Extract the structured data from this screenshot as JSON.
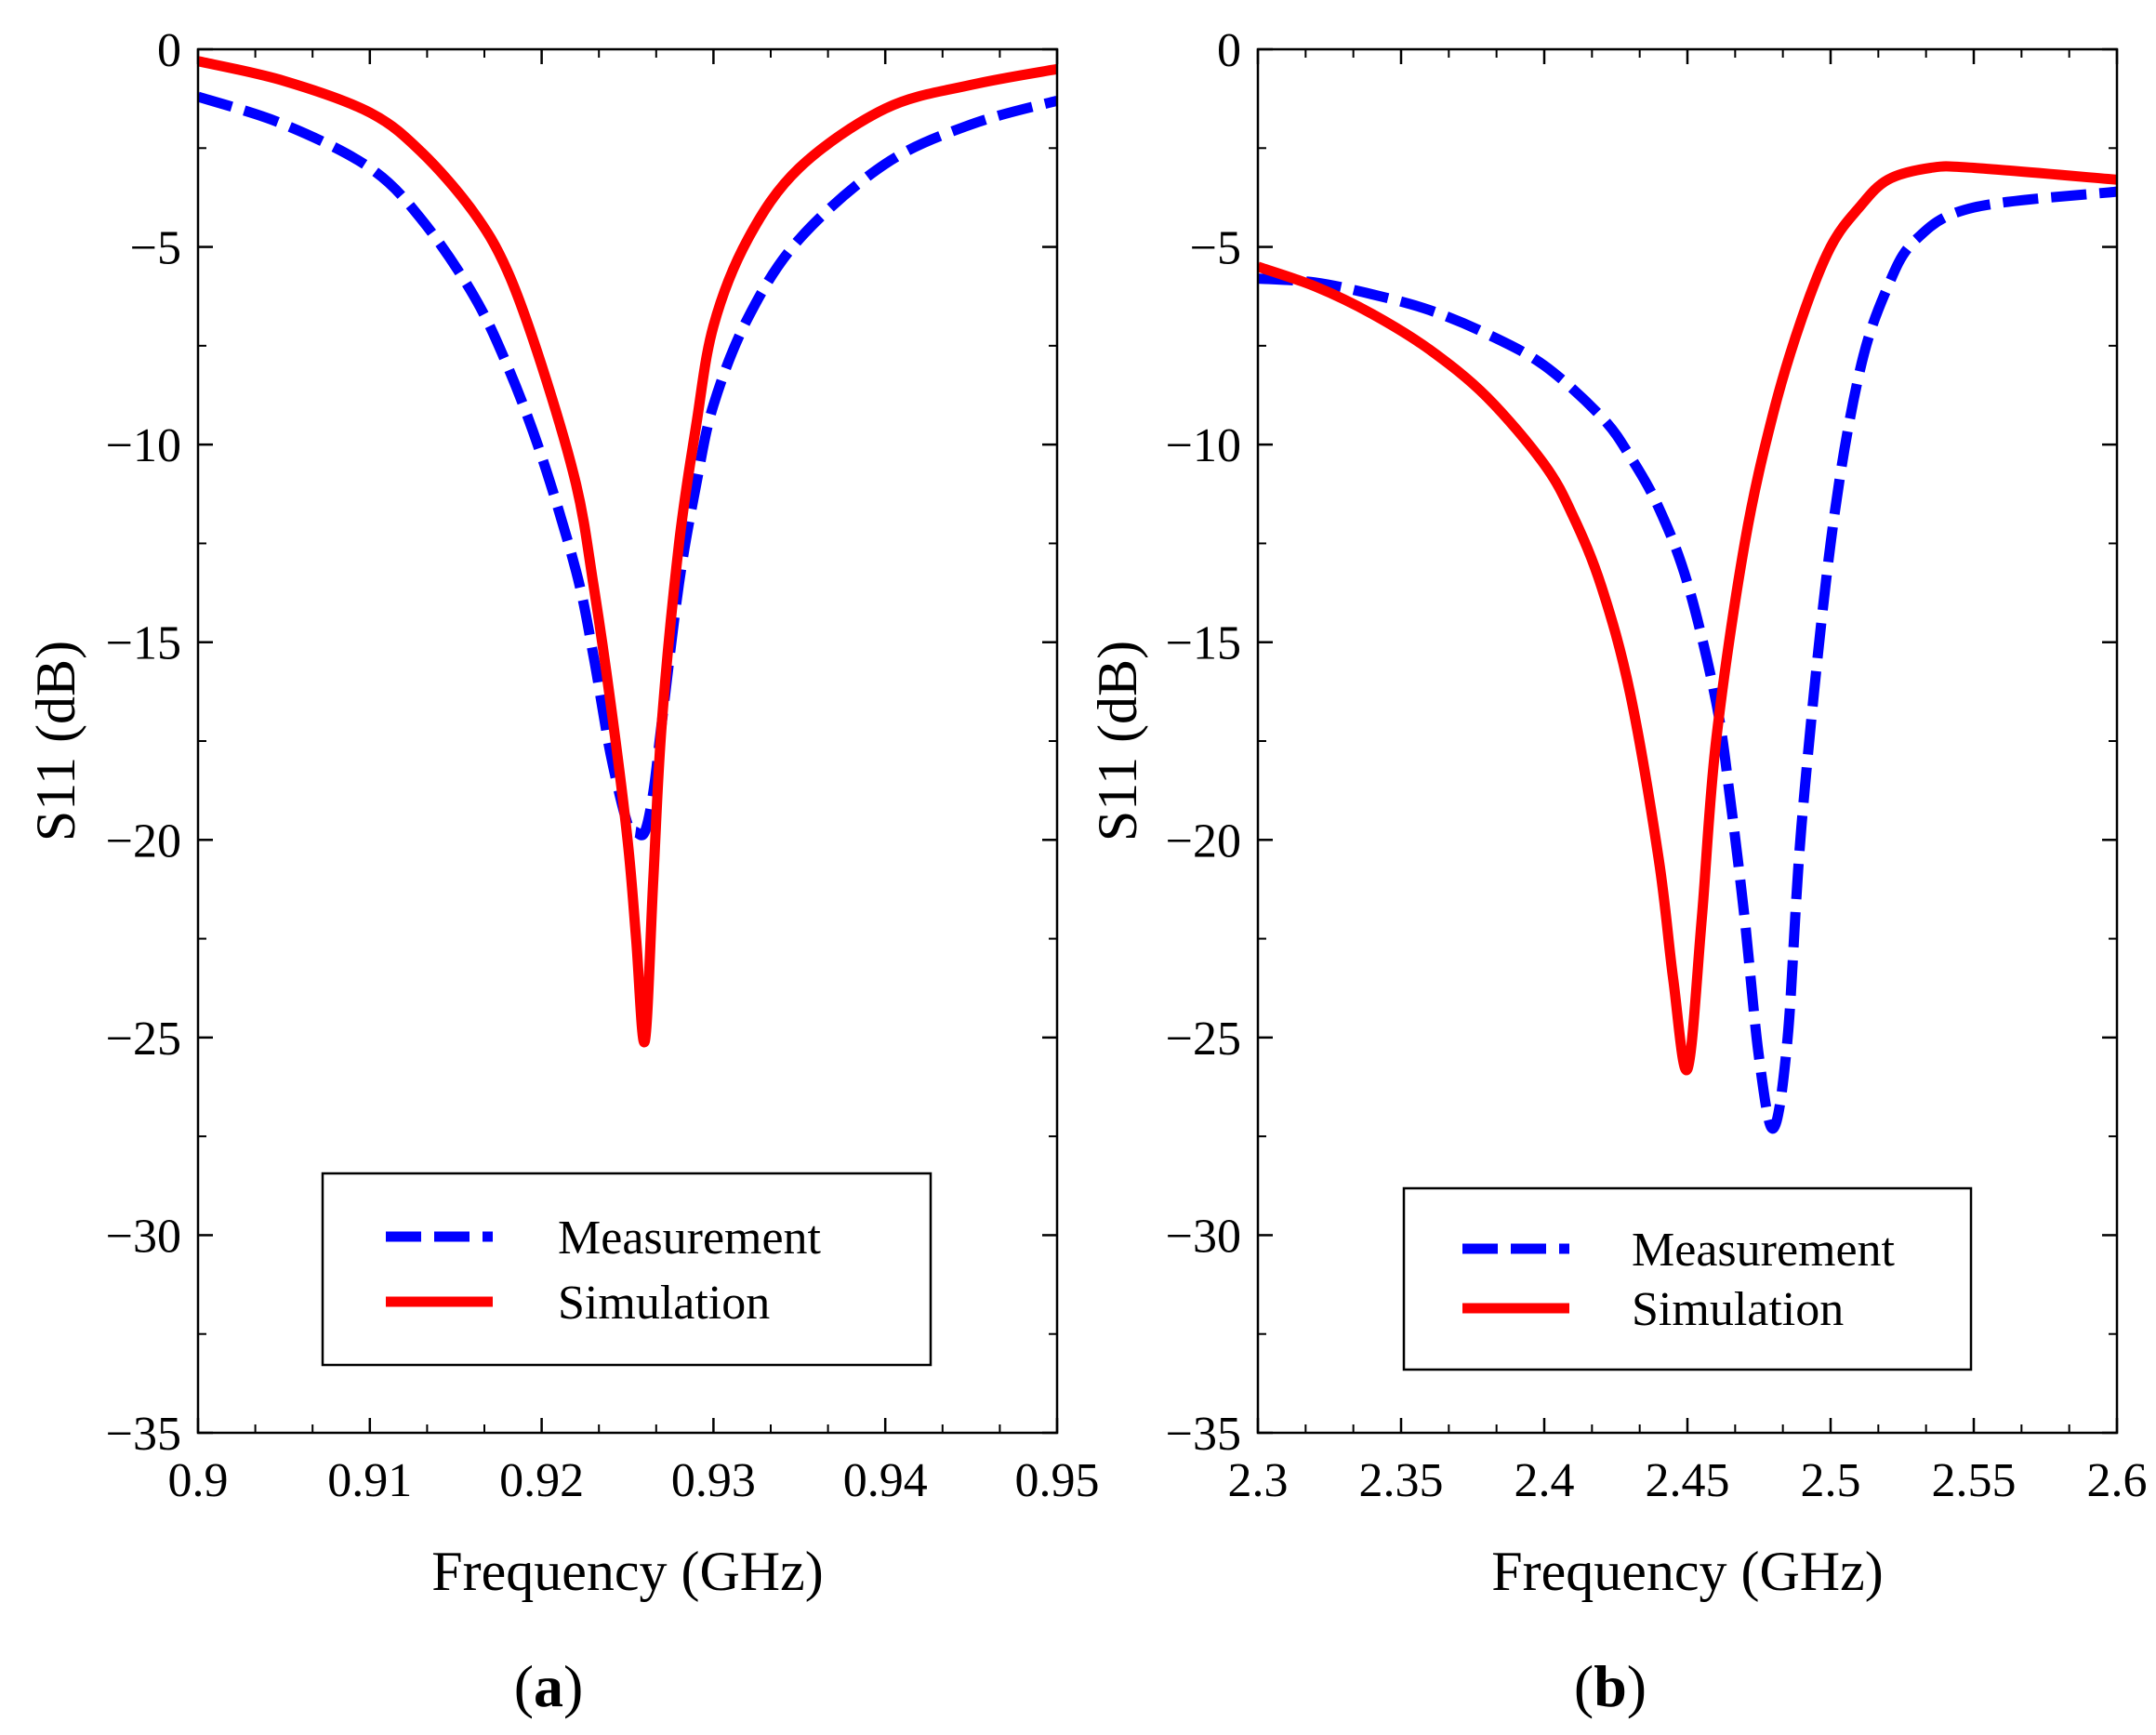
{
  "chart_data": [
    {
      "type": "line",
      "panel_label": "a",
      "xlabel": "Frequency (GHz)",
      "ylabel": "S11 (dB)",
      "xlim": [
        0.9,
        0.95
      ],
      "ylim": [
        -35,
        0
      ],
      "x_ticks": [
        "0.9",
        "0.91",
        "0.92",
        "0.93",
        "0.94",
        "0.95"
      ],
      "y_ticks": [
        "0",
        "−5",
        "−10",
        "−15",
        "−20",
        "−25",
        "−30",
        "−35"
      ],
      "legend_position": "lower-center",
      "series": [
        {
          "name": "Measurement",
          "style": "dashed",
          "color": "#0000ff",
          "x": [
            0.9,
            0.905,
            0.91,
            0.913,
            0.916,
            0.918,
            0.92,
            0.922,
            0.923,
            0.924,
            0.925,
            0.9255,
            0.926,
            0.9265,
            0.927,
            0.928,
            0.929,
            0.93,
            0.932,
            0.935,
            0.94,
            0.945,
            0.95
          ],
          "y": [
            -1.2,
            -1.9,
            -3.0,
            -4.3,
            -6.2,
            -8.0,
            -10.3,
            -13.2,
            -15.3,
            -17.8,
            -19.6,
            -19.8,
            -19.8,
            -18.8,
            -17.0,
            -13.5,
            -11.0,
            -9.0,
            -6.8,
            -4.8,
            -2.9,
            -1.9,
            -1.3
          ]
        },
        {
          "name": "Simulation",
          "style": "solid",
          "color": "#ff0000",
          "x": [
            0.9,
            0.905,
            0.91,
            0.913,
            0.916,
            0.918,
            0.92,
            0.922,
            0.923,
            0.924,
            0.925,
            0.9255,
            0.926,
            0.9265,
            0.927,
            0.928,
            0.929,
            0.93,
            0.932,
            0.935,
            0.94,
            0.945,
            0.95
          ],
          "y": [
            -0.3,
            -0.8,
            -1.6,
            -2.6,
            -4.1,
            -5.6,
            -8.0,
            -11.0,
            -13.5,
            -16.5,
            -20.0,
            -22.5,
            -25.1,
            -21.0,
            -17.0,
            -12.5,
            -9.5,
            -7.0,
            -4.8,
            -3.0,
            -1.5,
            -0.9,
            -0.5
          ]
        }
      ]
    },
    {
      "type": "line",
      "panel_label": "b",
      "xlabel": "Frequency (GHz)",
      "ylabel": "S11 (dB)",
      "xlim": [
        2.3,
        2.6
      ],
      "ylim": [
        -35,
        0
      ],
      "x_ticks": [
        "2.3",
        "2.35",
        "2.4",
        "2.45",
        "2.5",
        "2.55",
        "2.6"
      ],
      "y_ticks": [
        "0",
        "−5",
        "−10",
        "−15",
        "−20",
        "−25",
        "−30",
        "−35"
      ],
      "legend_position": "lower-center",
      "series": [
        {
          "name": "Measurement",
          "style": "dashed",
          "color": "#0000ff",
          "x": [
            2.3,
            2.32,
            2.34,
            2.36,
            2.38,
            2.4,
            2.42,
            2.43,
            2.44,
            2.45,
            2.46,
            2.465,
            2.47,
            2.475,
            2.48,
            2.485,
            2.49,
            2.5,
            2.51,
            2.52,
            2.53,
            2.55,
            2.6
          ],
          "y": [
            -5.8,
            -5.9,
            -6.2,
            -6.6,
            -7.2,
            -8.0,
            -9.3,
            -10.3,
            -11.6,
            -13.5,
            -16.5,
            -19.0,
            -22.0,
            -25.5,
            -27.3,
            -25.0,
            -19.5,
            -12.5,
            -8.2,
            -6.0,
            -4.8,
            -4.0,
            -3.6
          ]
        },
        {
          "name": "Simulation",
          "style": "solid",
          "color": "#ff0000",
          "x": [
            2.3,
            2.32,
            2.34,
            2.36,
            2.38,
            2.4,
            2.41,
            2.42,
            2.43,
            2.44,
            2.445,
            2.45,
            2.455,
            2.46,
            2.47,
            2.48,
            2.49,
            2.5,
            2.51,
            2.52,
            2.535,
            2.55,
            2.6
          ],
          "y": [
            -5.5,
            -6.0,
            -6.7,
            -7.6,
            -8.8,
            -10.5,
            -11.8,
            -13.6,
            -16.3,
            -20.5,
            -23.5,
            -25.8,
            -22.0,
            -17.5,
            -12.5,
            -9.2,
            -6.8,
            -5.0,
            -4.0,
            -3.3,
            -3.0,
            -3.0,
            -3.3
          ]
        }
      ]
    }
  ]
}
